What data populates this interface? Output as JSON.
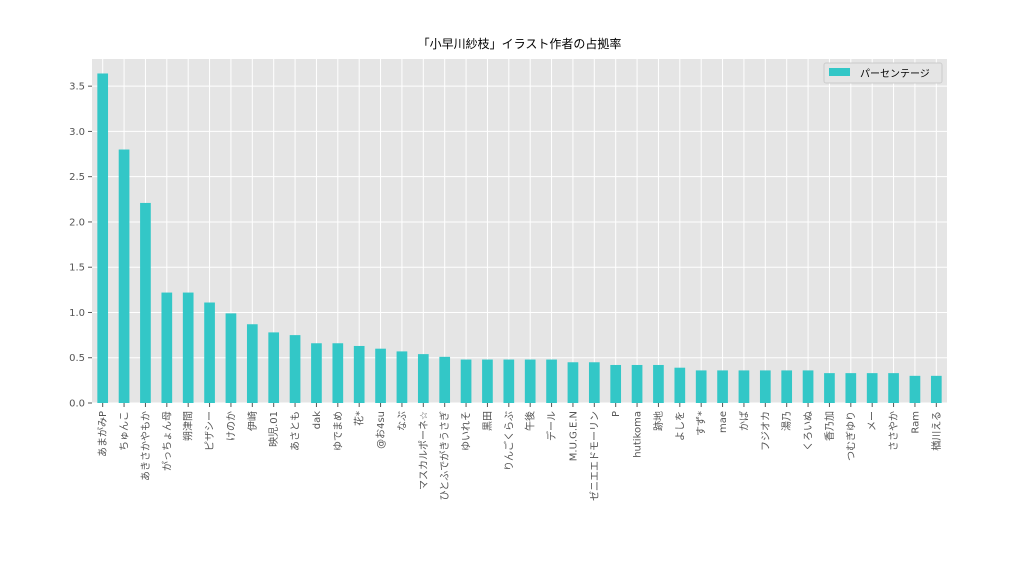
{
  "chart_data": {
    "type": "bar",
    "title": "「小早川紗枝」イラスト作者の占拠率",
    "xlabel": "",
    "ylabel": "",
    "ylim": [
      0,
      3.8
    ],
    "yticks": [
      "0.0",
      "0.5",
      "1.0",
      "1.5",
      "2.0",
      "2.5",
      "3.0",
      "3.5"
    ],
    "grid": true,
    "legend_position": "top-right",
    "categories": [
      "あまがみP",
      "ちゅんこ",
      "あきさかやもか",
      "がっちょん母",
      "朔津間",
      "ピザシー",
      "けのか",
      "伊崎",
      "映児.01",
      "あさとも",
      "dak",
      "ゆでまめ",
      "花*",
      "@お4su",
      "なぶ",
      "マスカルポーネ☆",
      "ひとふでがきうさぎ",
      "ゆいれそ",
      "黒田",
      "りんごくらぶ",
      "午後",
      "デール",
      "M.U.G.E.N",
      "ゼニエエドモーリン",
      "P",
      "hutikoma",
      "跡地",
      "よしを",
      "すず*",
      "mae",
      "かば",
      "フジオカ",
      "湯乃",
      "くろいぬ",
      "香乃加",
      "つむぎゆり",
      "メー",
      "ささやか",
      "Ram",
      "楢川える"
    ],
    "series": [
      {
        "name": "パーセンテージ",
        "color": "#33c7c7",
        "values": [
          3.64,
          2.8,
          2.21,
          1.22,
          1.22,
          1.11,
          0.99,
          0.87,
          0.78,
          0.75,
          0.66,
          0.66,
          0.63,
          0.6,
          0.57,
          0.54,
          0.51,
          0.48,
          0.48,
          0.48,
          0.48,
          0.48,
          0.45,
          0.45,
          0.42,
          0.42,
          0.42,
          0.39,
          0.36,
          0.36,
          0.36,
          0.36,
          0.36,
          0.36,
          0.33,
          0.33,
          0.33,
          0.33,
          0.3,
          0.3
        ]
      }
    ]
  }
}
